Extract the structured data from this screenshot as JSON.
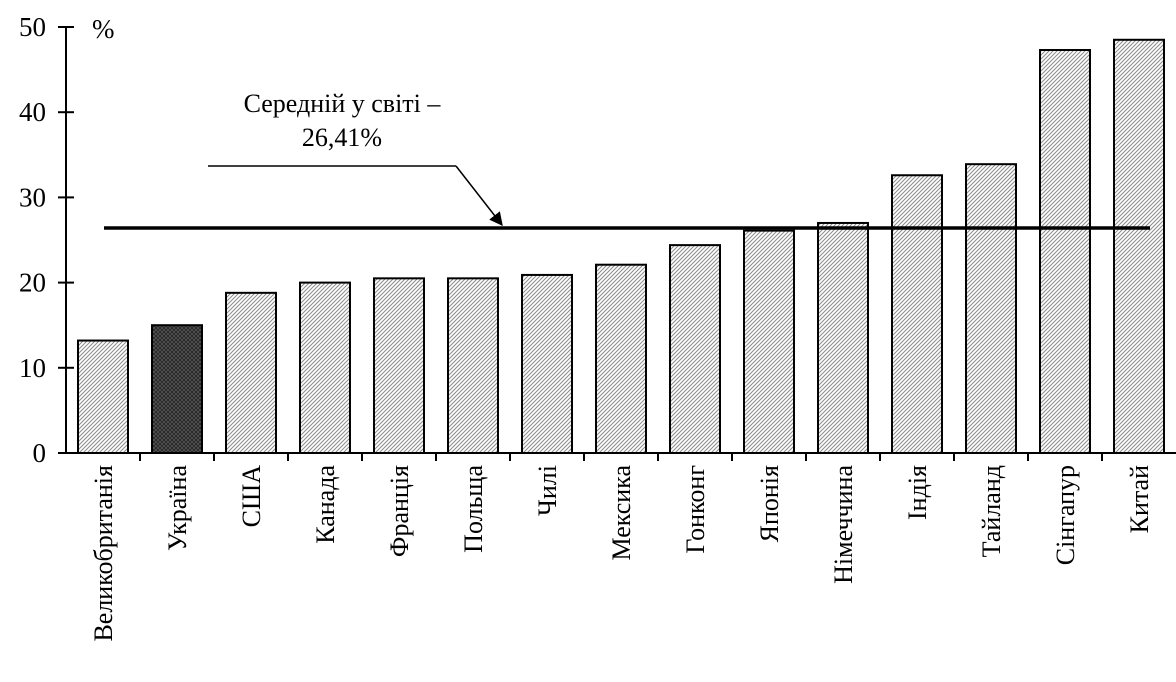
{
  "chart_data": {
    "type": "bar",
    "unit": "%",
    "ylim": [
      0,
      50
    ],
    "yticks": [
      0,
      10,
      20,
      30,
      40,
      50
    ],
    "ytick_labels": [
      "0",
      "10",
      "20",
      "30",
      "40",
      "50"
    ],
    "categories": [
      "Великобританія",
      "Україна",
      "США",
      "Канада",
      "Франція",
      "Польща",
      "Чилі",
      "Мексика",
      "Гонконг",
      "Японія",
      "Німеччина",
      "Індія",
      "Тайланд",
      "Сінгапур",
      "Китай"
    ],
    "values": [
      13.2,
      15.0,
      18.8,
      20.0,
      20.5,
      20.5,
      20.9,
      22.1,
      24.4,
      26.1,
      27.0,
      32.6,
      33.9,
      47.3,
      48.5
    ],
    "highlight_index": 1,
    "reference_line": {
      "value": 26.41,
      "label_line1": "Середній у світі –",
      "label_line2": "26,41%"
    },
    "grid": false,
    "legend": "none"
  }
}
